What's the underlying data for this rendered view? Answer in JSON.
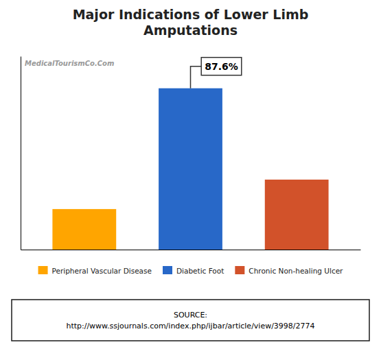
{
  "chart_data": {
    "type": "bar",
    "title": "Major Indications of Lower Limb\nAmputations",
    "categories": [
      "Peripheral Vascular Disease",
      "Diabetic Foot",
      "Chronic Non-healing Ulcer"
    ],
    "values": [
      22,
      87.6,
      38
    ],
    "colors": [
      "#FFA500",
      "#2868C8",
      "#D2522A"
    ],
    "ylim": [
      0,
      105
    ],
    "tick_labels": false,
    "legend": "bottom",
    "annotations": [
      {
        "text": "87.6%",
        "x": "Diabetic Foot",
        "y": 87.6
      }
    ],
    "watermark": "MedicalTourismCo.Com",
    "source": "SOURCE:\nhttp://www.ssjournals.com/index.php/ijbar/article/view/3998/2774"
  }
}
